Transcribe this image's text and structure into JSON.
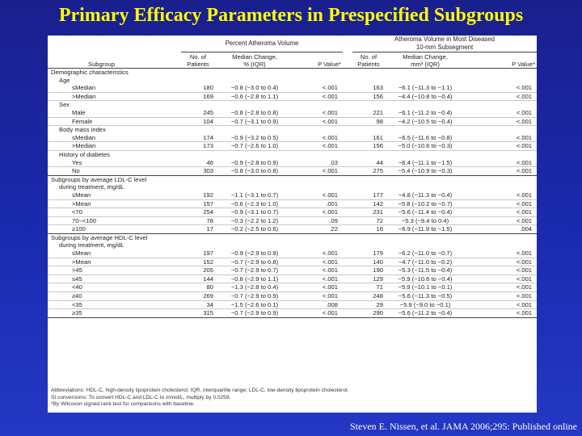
{
  "title": "Primary Efficacy Parameters in Prespecified Subgroups",
  "citation": "Steven E. Nissen, et al. JAMA 2006;295: Published online",
  "table": {
    "group_headers": {
      "pav": "Percent Atheroma Volume",
      "atheroma_line1": "Atheroma Volume in Most Diseased",
      "atheroma_line2": "10-mm Subsegment"
    },
    "columns": {
      "subgroup": "Subgroup",
      "n_line1": "No. of",
      "n_line2": "Patients",
      "median_pct_line1": "Median Change,",
      "median_pct_line2": "% (IQR)",
      "median_mm3_line1": "Median Change,",
      "median_mm3_line2": "mm³ (IQR)",
      "pvalue": "P Value*"
    },
    "rows": [
      {
        "label": "Demographic characteristics",
        "level": 0
      },
      {
        "label": "Age",
        "level": 1
      },
      {
        "label": "≤Median",
        "level": 2,
        "n1": "180",
        "m1": "−0.8 (−3.0 to 0.4)",
        "p1": "<.001",
        "n2": "163",
        "m2": "−6.1 (−11.3 to −1.1)",
        "p2": "<.001"
      },
      {
        "label": ">Median",
        "level": 2,
        "n1": "169",
        "m1": "−0.6 (−2.8 to 1.1)",
        "p1": "<.001",
        "n2": "156",
        "m2": "−4.4 (−10.8 to −0.4)",
        "p2": "<.001"
      },
      {
        "label": "Sex",
        "level": 1
      },
      {
        "label": "Male",
        "level": 2,
        "n1": "245",
        "m1": "−0.8 (−2.8 to 0.8)",
        "p1": "<.001",
        "n2": "221",
        "m2": "−6.1 (−11.2 to −0.4)",
        "p2": "<.001"
      },
      {
        "label": "Female",
        "level": 2,
        "n1": "104",
        "m1": "−0.7 (−3.1 to 0.9)",
        "p1": "<.001",
        "n2": "98",
        "m2": "−4.2 (−10.5 to −0.4)",
        "p2": "<.001"
      },
      {
        "label": "Body mass index",
        "level": 1
      },
      {
        "label": "≤Median",
        "level": 2,
        "n1": "174",
        "m1": "−0.9 (−3.2 to 0.5)",
        "p1": "<.001",
        "n2": "161",
        "m2": "−6.5 (−11.6 to −0.8)",
        "p2": "<.001"
      },
      {
        "label": ">Median",
        "level": 2,
        "n1": "173",
        "m1": "−0.7 (−2.6 to 1.0)",
        "p1": "<.001",
        "n2": "156",
        "m2": "−5.0 (−10.6 to −0.3)",
        "p2": "<.001"
      },
      {
        "label": "History of diabetes",
        "level": 1
      },
      {
        "label": "Yes",
        "level": 2,
        "n1": "46",
        "m1": "−0.9 (−2.8 to 0.9)",
        "p1": ".03",
        "n2": "44",
        "m2": "−6.4 (−11.1 to −1.5)",
        "p2": "<.001"
      },
      {
        "label": "No",
        "level": 2,
        "n1": "303",
        "m1": "−0.8 (−3.0 to 0.8)",
        "p1": "<.001",
        "n2": "275",
        "m2": "−5.4 (−10.9 to −0.3)",
        "p2": "<.001"
      },
      {
        "label": "Subgroups by average LDL-C level",
        "level": 0
      },
      {
        "label": "during treatment, mg/dL",
        "level": 1
      },
      {
        "label": "≤Mean",
        "level": 2,
        "n1": "192",
        "m1": "−1.1 (−3.1 to 0.7)",
        "p1": "<.001",
        "n2": "177",
        "m2": "−4.8 (−11.3 to −0.4)",
        "p2": "<.001"
      },
      {
        "label": ">Mean",
        "level": 2,
        "n1": "157",
        "m1": "−0.6 (−2.3 to 1.0)",
        "p1": ".001",
        "n2": "142",
        "m2": "−5.8 (−10.2 to −0.7)",
        "p2": "<.001"
      },
      {
        "label": "<70",
        "level": 2,
        "n1": "254",
        "m1": "−0.9 (−3.1 to 0.7)",
        "p1": "<.001",
        "n2": "231",
        "m2": "−5.6 (−11.4 to −0.4)",
        "p2": "<.001"
      },
      {
        "label": "70−<100",
        "level": 2,
        "n1": "78",
        "m1": "−0.3 (−2.2 to 1.2)",
        "p1": ".09",
        "n2": "72",
        "m2": "−5.3 (−9.4 to 0.4)",
        "p2": "<.001"
      },
      {
        "label": "≥100",
        "level": 2,
        "n1": "17",
        "m1": "−0.2 (−2.5 to 0.6)",
        "p1": ".22",
        "n2": "16",
        "m2": "−6.9 (−11.9 to −1.5)",
        "p2": ".004"
      },
      {
        "label": "Subgroups by average HDL-C level",
        "level": 0
      },
      {
        "label": "during treatment, mg/dL",
        "level": 1
      },
      {
        "label": "≤Mean",
        "level": 2,
        "n1": "197",
        "m1": "−0.9 (−2.9 to 0.9)",
        "p1": "<.001",
        "n2": "179",
        "m2": "−6.2 (−11.0 to −0.7)",
        "p2": "<.001"
      },
      {
        "label": ">Mean",
        "level": 2,
        "n1": "152",
        "m1": "−0.7 (−2.9 to 0.8)",
        "p1": "<.001",
        "n2": "140",
        "m2": "−4.7 (−11.0 to −0.2)",
        "p2": "<.001"
      },
      {
        "label": ">45",
        "level": 2,
        "n1": "205",
        "m1": "−0.7 (−2.9 to 0.7)",
        "p1": "<.001",
        "n2": "190",
        "m2": "−5.3 (−11.5 to −0.4)",
        "p2": "<.001"
      },
      {
        "label": "≤45",
        "level": 2,
        "n1": "144",
        "m1": "−0.8 (−2.9 to 1.1)",
        "p1": "<.001",
        "n2": "129",
        "m2": "−5.9 (−10.6 to −0.4)",
        "p2": "<.001"
      },
      {
        "label": "<40",
        "level": 2,
        "n1": "80",
        "m1": "−1.3 (−2.8 to 0.4)",
        "p1": "<.001",
        "n2": "71",
        "m2": "−5.9 (−10.1 to −0.1)",
        "p2": "<.001"
      },
      {
        "label": "≥40",
        "level": 2,
        "n1": "269",
        "m1": "−0.7 (−2.9 to 0.9)",
        "p1": "<.001",
        "n2": "248",
        "m2": "−5.6 (−11.3 to −0.5)",
        "p2": "<.001"
      },
      {
        "label": "<35",
        "level": 2,
        "n1": "34",
        "m1": "−1.5 (−2.6 to 0.1)",
        "p1": ".008",
        "n2": "29",
        "m2": "−5.9 (−9.0 to −0.1)",
        "p2": "<.001"
      },
      {
        "label": "≥35",
        "level": 2,
        "n1": "315",
        "m1": "−0.7 (−2.9 to 0.9)",
        "p1": "<.001",
        "n2": "290",
        "m2": "−5.6 (−11.2 to −0.4)",
        "p2": "<.001"
      }
    ],
    "footnotes": [
      "Abbreviations: HDL-C, high-density lipoprotein cholesterol; IQR, interquartile range; LDL-C, low-density lipoprotein cholesterol.",
      "SI conversions: To convert HDL-C and LDL-C to mmol/L, multiply by 0.0259.",
      "*By Wilcoxon signed rank test for comparisons with baseline."
    ]
  },
  "colors": {
    "background": "#1a2bb0",
    "title": "#ffff00",
    "citation": "#ffffff"
  }
}
